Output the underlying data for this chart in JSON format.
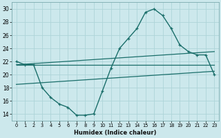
{
  "xlabel": "Humidex (Indice chaleur)",
  "bg_color": "#cce8ec",
  "line_color": "#1a6e6a",
  "grid_color": "#add4d8",
  "xlim": [
    -0.5,
    23.5
  ],
  "ylim": [
    13,
    31
  ],
  "xticks": [
    0,
    1,
    2,
    3,
    4,
    5,
    6,
    7,
    8,
    9,
    10,
    11,
    12,
    13,
    14,
    15,
    16,
    17,
    18,
    19,
    20,
    21,
    22,
    23
  ],
  "yticks": [
    14,
    16,
    18,
    20,
    22,
    24,
    26,
    28,
    30
  ],
  "curve_main_x": [
    0,
    1,
    2,
    3,
    4,
    5,
    6,
    7,
    8,
    9,
    10,
    11,
    12,
    13,
    14,
    15,
    16,
    17,
    18,
    19,
    20,
    21,
    22,
    23
  ],
  "curve_main_y": [
    22,
    21.5,
    21.5,
    18,
    16.5,
    15.5,
    15,
    13.8,
    13.8,
    14,
    17.5,
    21,
    24,
    25.5,
    27,
    29.5,
    30,
    29,
    27,
    24.5,
    23.5,
    23,
    23,
    20
  ],
  "line1_x": [
    0,
    23
  ],
  "line1_y": [
    21.5,
    21.5
  ],
  "line2_x": [
    0,
    23
  ],
  "line2_y": [
    21.5,
    23.5
  ],
  "line3_x": [
    0,
    23
  ],
  "line3_y": [
    18.5,
    20.5
  ]
}
